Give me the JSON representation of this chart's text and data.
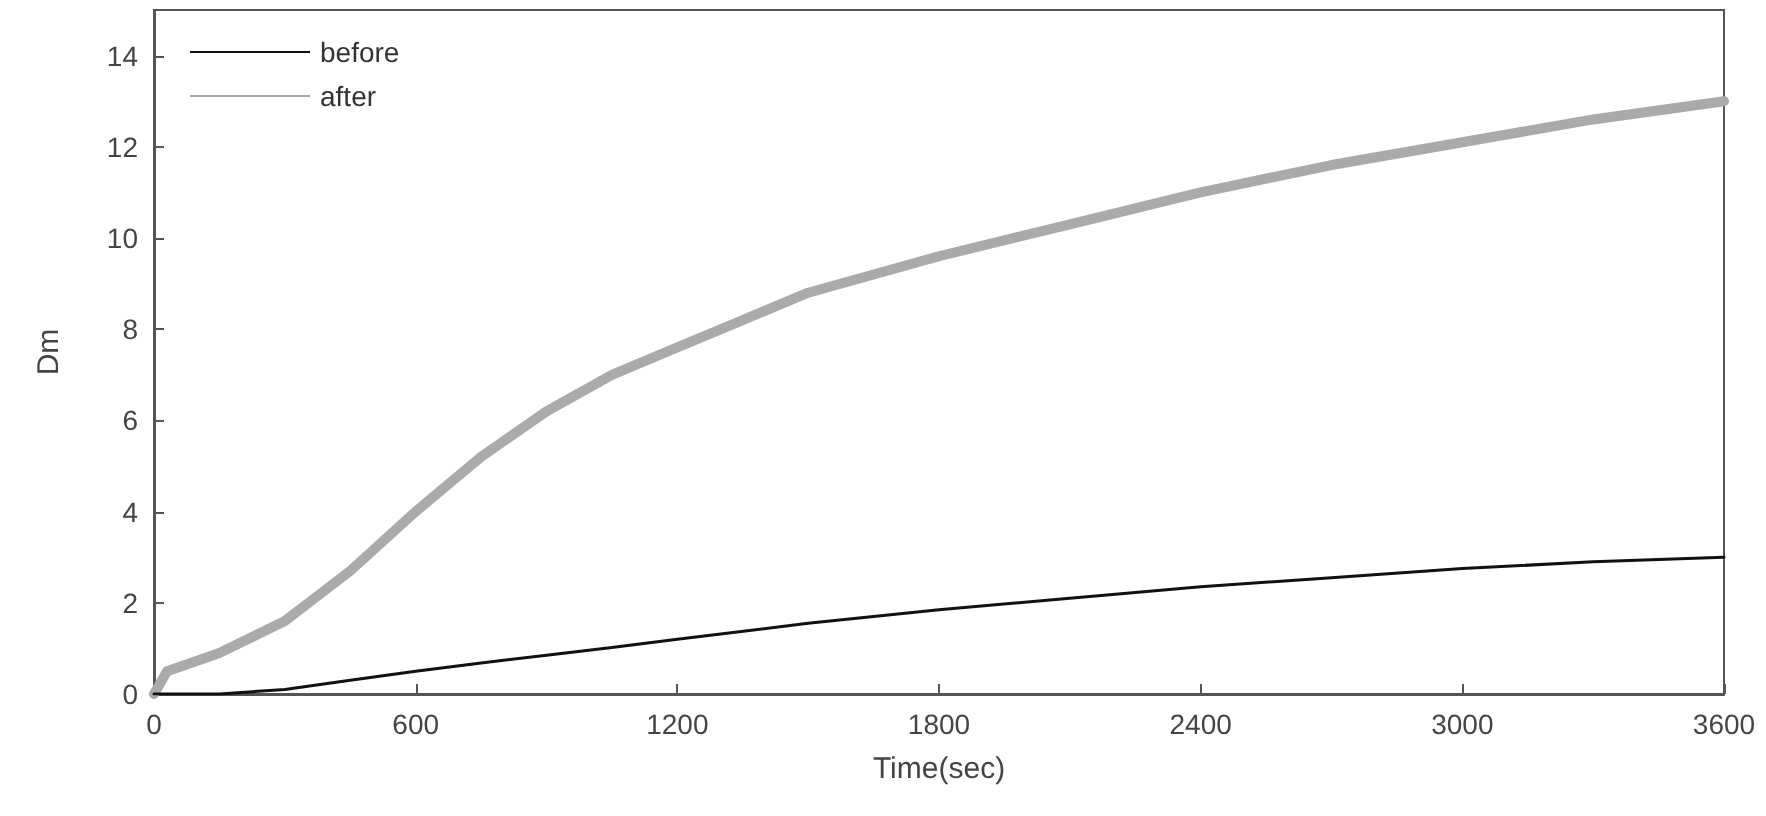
{
  "chart_data": {
    "type": "line",
    "xlabel": "Time(sec)",
    "ylabel": "Dm",
    "xlim": [
      0,
      3600
    ],
    "xticks": [
      0,
      600,
      1200,
      1800,
      2400,
      3000,
      3600
    ],
    "ylim": [
      0,
      15
    ],
    "yticks": [
      0,
      2,
      4,
      6,
      8,
      10,
      12,
      14
    ],
    "grid": false,
    "legend": "top left",
    "marker": "none",
    "line_style": "solid",
    "series": [
      {
        "name": "before",
        "color": "#111111",
        "x": [
          0,
          150,
          300,
          450,
          600,
          750,
          900,
          1050,
          1200,
          1500,
          1800,
          2100,
          2400,
          2700,
          3000,
          3300,
          3600
        ],
        "values": [
          0,
          0,
          0.1,
          0.3,
          0.5,
          0.68,
          0.85,
          1.02,
          1.2,
          1.55,
          1.85,
          2.1,
          2.35,
          2.55,
          2.75,
          2.9,
          3.0
        ]
      },
      {
        "name": "after",
        "color": "#aaaaaa",
        "x": [
          0,
          30,
          150,
          300,
          450,
          600,
          750,
          900,
          1050,
          1200,
          1350,
          1500,
          1650,
          1800,
          2100,
          2400,
          2700,
          3000,
          3300,
          3600
        ],
        "values": [
          0,
          0.5,
          0.9,
          1.6,
          2.7,
          4.0,
          5.2,
          6.2,
          7.0,
          7.6,
          8.2,
          8.8,
          9.2,
          9.6,
          10.3,
          11.0,
          11.6,
          12.1,
          12.6,
          13.0
        ]
      }
    ]
  }
}
